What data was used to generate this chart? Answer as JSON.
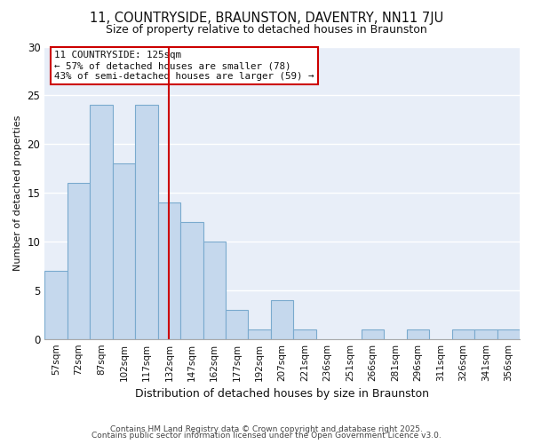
{
  "title": "11, COUNTRYSIDE, BRAUNSTON, DAVENTRY, NN11 7JU",
  "subtitle": "Size of property relative to detached houses in Braunston",
  "xlabel": "Distribution of detached houses by size in Braunston",
  "ylabel": "Number of detached properties",
  "bins": [
    "57sqm",
    "72sqm",
    "87sqm",
    "102sqm",
    "117sqm",
    "132sqm",
    "147sqm",
    "162sqm",
    "177sqm",
    "192sqm",
    "207sqm",
    "221sqm",
    "236sqm",
    "251sqm",
    "266sqm",
    "281sqm",
    "296sqm",
    "311sqm",
    "326sqm",
    "341sqm",
    "356sqm"
  ],
  "values": [
    7,
    16,
    24,
    18,
    24,
    14,
    12,
    10,
    3,
    1,
    4,
    1,
    0,
    0,
    1,
    0,
    1,
    0,
    1,
    1,
    1
  ],
  "bar_color": "#c5d8ed",
  "bar_edge_color": "#7aaace",
  "annotation_title": "11 COUNTRYSIDE: 125sqm",
  "annotation_line1": "← 57% of detached houses are smaller (78)",
  "annotation_line2": "43% of semi-detached houses are larger (59) →",
  "vline_color": "#cc0000",
  "vline_index": 5,
  "background_color": "#ffffff",
  "plot_bg_color": "#e8eef8",
  "grid_color": "#ffffff",
  "ylim": [
    0,
    30
  ],
  "yticks": [
    0,
    5,
    10,
    15,
    20,
    25,
    30
  ],
  "footer1": "Contains HM Land Registry data © Crown copyright and database right 2025.",
  "footer2": "Contains public sector information licensed under the Open Government Licence v3.0."
}
